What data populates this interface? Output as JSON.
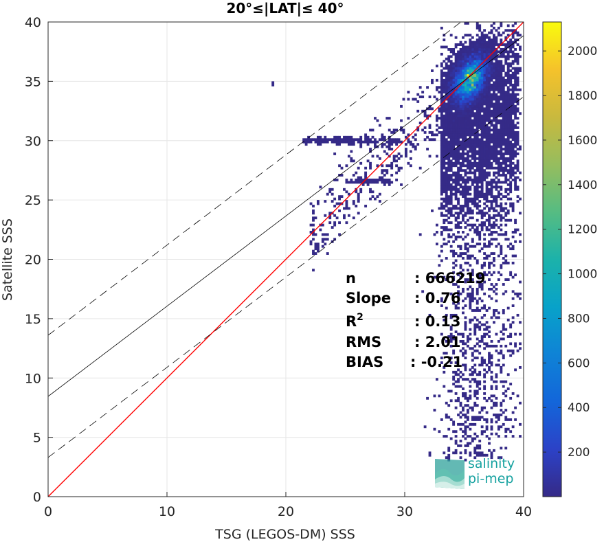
{
  "chart_data": {
    "type": "heatmap",
    "title": "20°≤|LAT|≤ 40°",
    "xlabel": "TSG (LEGOS-DM) SSS",
    "ylabel": "Satellite SSS",
    "xlim": [
      0,
      40
    ],
    "ylim": [
      0,
      40
    ],
    "xticks": [
      "0",
      "10",
      "20",
      "30",
      "40"
    ],
    "yticks": [
      "0",
      "5",
      "10",
      "15",
      "20",
      "25",
      "30",
      "35",
      "40"
    ],
    "grid": true,
    "colorbar": {
      "range": [
        0,
        2130
      ],
      "ticks": [
        "200",
        "400",
        "600",
        "800",
        "1000",
        "1200",
        "1400",
        "1600",
        "1800",
        "2000"
      ],
      "tick_values": [
        200,
        400,
        600,
        800,
        1000,
        1200,
        1400,
        1600,
        1800,
        2000
      ],
      "colormap": "parula"
    },
    "density_peak": {
      "x": 35.5,
      "y": 35.2,
      "count": 2100
    },
    "lines": [
      {
        "role": "identity",
        "color": "#ff0000",
        "style": "solid",
        "intercept": 0,
        "slope": 1
      },
      {
        "role": "regression",
        "color": "#000000",
        "style": "solid",
        "intercept": 8.45,
        "slope": 0.76
      },
      {
        "role": "upper-bound",
        "color": "#000000",
        "style": "dashed",
        "intercept": 13.6,
        "slope": 0.76
      },
      {
        "role": "lower-bound",
        "color": "#000000",
        "style": "dashed",
        "intercept": 3.3,
        "slope": 0.76
      }
    ],
    "stats": [
      {
        "label": "n",
        "value": ": 666219"
      },
      {
        "label": "Slope",
        "value": ": 0.76"
      },
      {
        "label": "R",
        "sup": "2",
        "value": ": 0.13"
      },
      {
        "label": "RMS",
        "value": ": 2.01"
      },
      {
        "label": "BIAS",
        "value": ": -0.21"
      }
    ]
  },
  "logo": {
    "line1": "salinity",
    "line2": "pi-mep"
  },
  "colors": {
    "identity": "#ff0000",
    "logo": "#17a2a0"
  }
}
